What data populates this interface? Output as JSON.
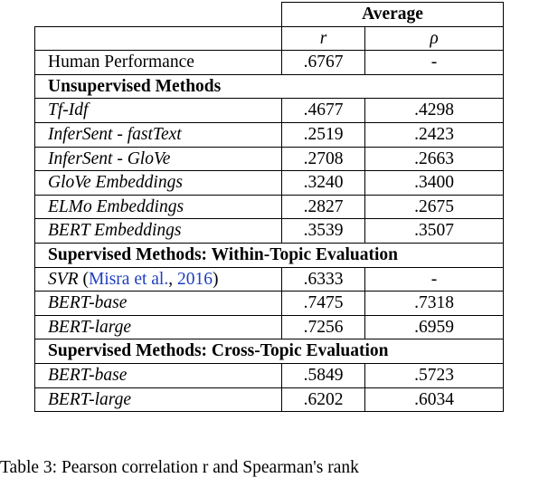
{
  "table": {
    "header": {
      "group_label": "Average",
      "col_r": "r",
      "col_rho": "ρ"
    },
    "human": {
      "label": "Human Performance",
      "r": ".6767",
      "rho": "-"
    },
    "sections": [
      {
        "title": "Unsupervised Methods",
        "rows": [
          {
            "label": "Tf-Idf",
            "r": ".4677",
            "rho": ".4298"
          },
          {
            "label": "InferSent - fastText",
            "r": ".2519",
            "rho": ".2423"
          },
          {
            "label": "InferSent - GloVe",
            "r": ".2708",
            "rho": ".2663"
          },
          {
            "label": "GloVe Embeddings",
            "r": ".3240",
            "rho": ".3400"
          },
          {
            "label": "ELMo Embeddings",
            "r": ".2827",
            "rho": ".2675"
          },
          {
            "label": "BERT Embeddings",
            "r": ".3539",
            "rho": ".3507"
          }
        ]
      },
      {
        "title": "Supervised Methods: Within-Topic Evaluation",
        "rows": [
          {
            "label": "SVR",
            "cite_open": " (",
            "cite_author": "Misra et al.",
            "cite_sep": ", ",
            "cite_year": "2016",
            "cite_close": ")",
            "r": ".6333",
            "rho": "-"
          },
          {
            "label": "BERT-base",
            "r": ".7475",
            "rho": ".7318"
          },
          {
            "label": "BERT-large",
            "r": ".7256",
            "rho": ".6959"
          }
        ]
      },
      {
        "title": "Supervised Methods: Cross-Topic Evaluation",
        "rows": [
          {
            "label": "BERT-base",
            "r": ".5849",
            "rho": ".5723"
          },
          {
            "label": "BERT-large",
            "r": ".6202",
            "rho": ".6034"
          }
        ]
      }
    ]
  },
  "caption": "Table 3: Pearson correlation r and Spearman's rank"
}
